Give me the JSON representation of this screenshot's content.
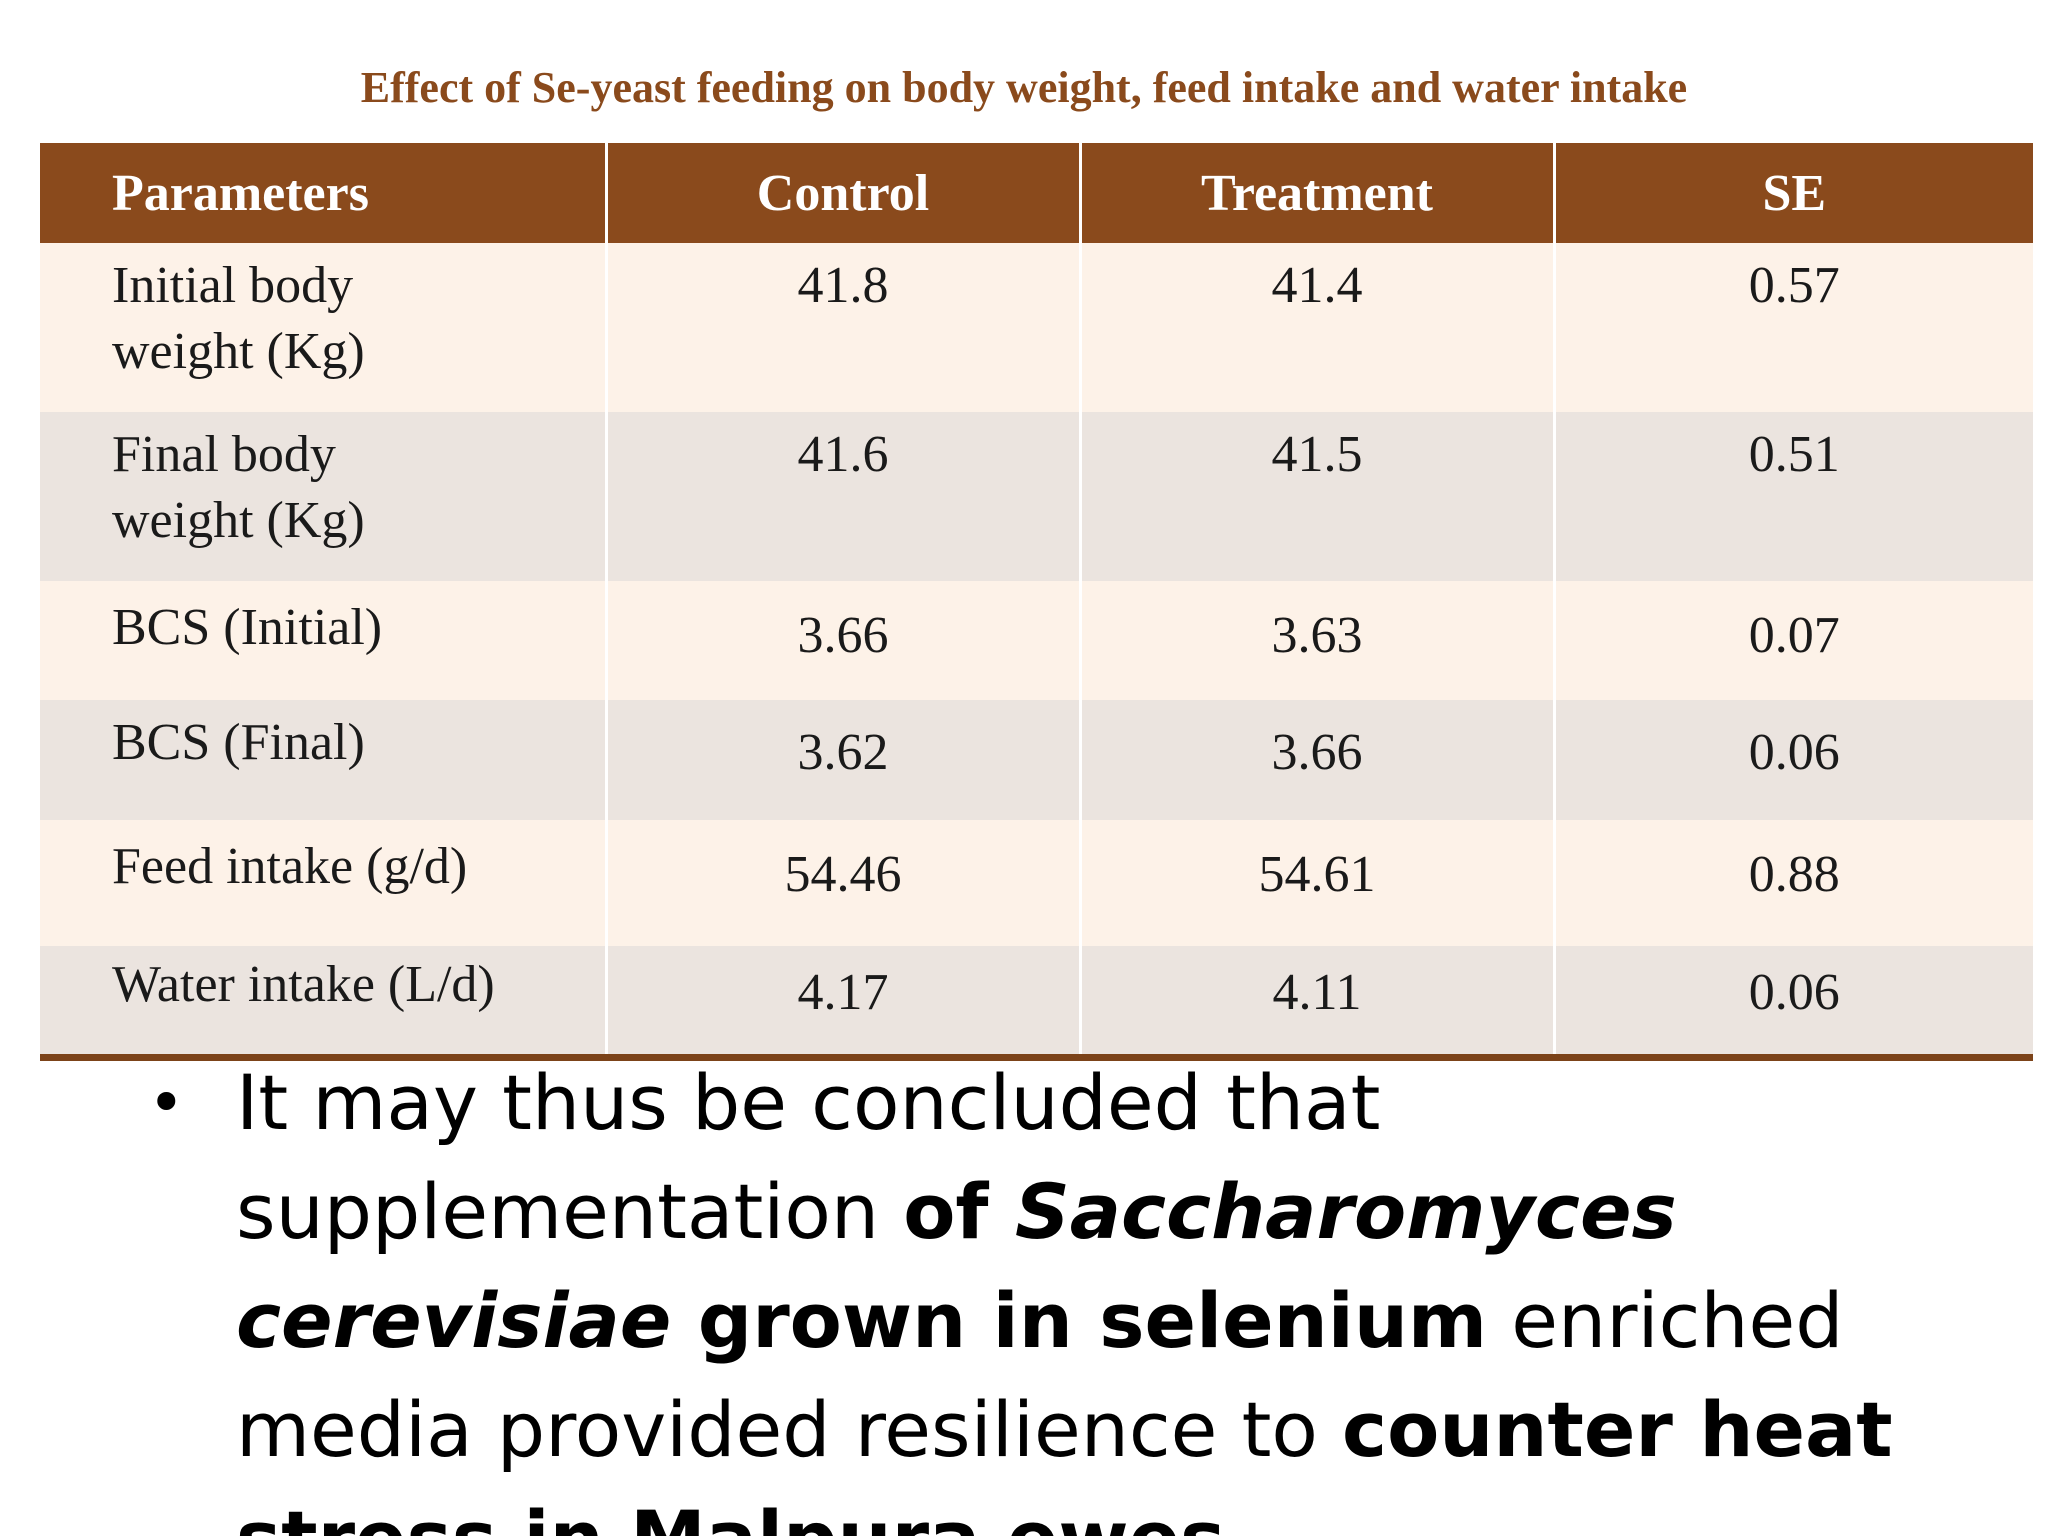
{
  "table": {
    "title": "Effect of Se-yeast feeding on body weight, feed intake and water intake",
    "headers": [
      "Parameters",
      "Control",
      "Treatment",
      "SE"
    ],
    "rows": [
      {
        "param_line1": "Initial body",
        "param_line2": "weight (Kg)",
        "control": "41.8",
        "treatment": "41.4",
        "se": "0.57"
      },
      {
        "param_line1": "Final body",
        "param_line2": "weight (Kg)",
        "control": "41.6",
        "treatment": "41.5",
        "se": "0.51"
      },
      {
        "param": "BCS (Initial)",
        "control": "3.66",
        "treatment": "3.63",
        "se": "0.07"
      },
      {
        "param": "BCS (Final)",
        "control": "3.62",
        "treatment": "3.66",
        "se": "0.06"
      },
      {
        "param": "Feed intake (g/d)",
        "control": "54.46",
        "treatment": "54.61",
        "se": "0.88"
      },
      {
        "param": "Water intake (L/d)",
        "control": "4.17",
        "treatment": "4.11",
        "se": "0.06"
      }
    ],
    "colors": {
      "header_bg": "#8a4a1c",
      "title_text": "#8a4a1c",
      "row_light": "#fdf2e8",
      "row_dark": "#ebe4df"
    }
  },
  "conclusion": {
    "bullet": "•",
    "seg1": "It may thus be concluded that supplementation ",
    "seg2_bold": "of ",
    "seg3_bold_italic": "Saccharomyces cerevisiae",
    "seg4_bold": " grown in selenium",
    "seg5": " enriched media provided resilience to ",
    "seg6_bold": "counter heat stress in Malpura ewes."
  }
}
